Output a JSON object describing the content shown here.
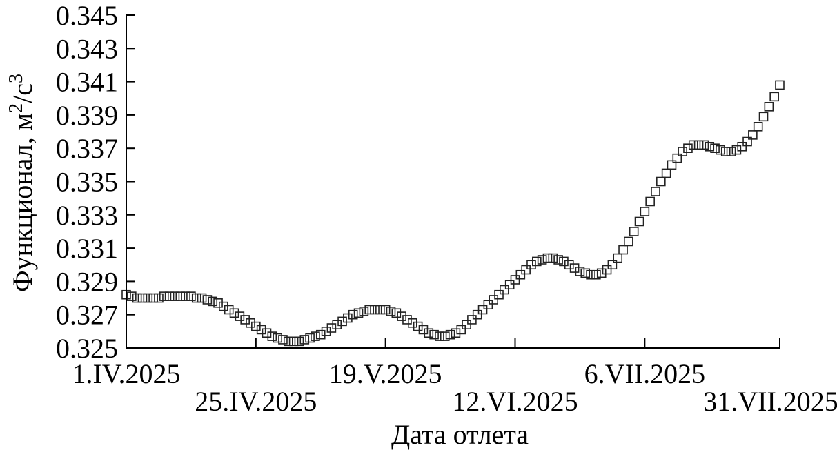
{
  "chart_data": {
    "type": "scatter",
    "marker": "open-square",
    "xlabel": "Дата отлета",
    "ylabel": "Функционал, м²/с³",
    "ylabel_parts": {
      "text": "Функционал, м",
      "sup1": "2",
      "mid": "/с",
      "sup2": "3"
    },
    "x_start": "2025-04-01",
    "x_end": "2025-07-31",
    "ylim": [
      0.325,
      0.345
    ],
    "y_ticks": [
      "0.325",
      "0.327",
      "0.329",
      "0.331",
      "0.333",
      "0.335",
      "0.337",
      "0.339",
      "0.341",
      "0.343",
      "0.345"
    ],
    "x_ticks": [
      {
        "date": "2025-04-01",
        "label": "1.IV.2025",
        "row": 1
      },
      {
        "date": "2025-04-25",
        "label": "25.IV.2025",
        "row": 2
      },
      {
        "date": "2025-05-19",
        "label": "19.V.2025",
        "row": 1
      },
      {
        "date": "2025-06-12",
        "label": "12.VI.2025",
        "row": 2
      },
      {
        "date": "2025-07-06",
        "label": "6.VII.2025",
        "row": 1
      },
      {
        "date": "2025-07-31",
        "label": "31.VII.2025",
        "row": 2
      }
    ],
    "points": [
      {
        "x": "2025-04-01",
        "y": 0.3282
      },
      {
        "x": "2025-04-02",
        "y": 0.3281
      },
      {
        "x": "2025-04-03",
        "y": 0.328
      },
      {
        "x": "2025-04-04",
        "y": 0.328
      },
      {
        "x": "2025-04-05",
        "y": 0.328
      },
      {
        "x": "2025-04-06",
        "y": 0.328
      },
      {
        "x": "2025-04-07",
        "y": 0.328
      },
      {
        "x": "2025-04-08",
        "y": 0.3281
      },
      {
        "x": "2025-04-09",
        "y": 0.3281
      },
      {
        "x": "2025-04-10",
        "y": 0.3281
      },
      {
        "x": "2025-04-11",
        "y": 0.3281
      },
      {
        "x": "2025-04-12",
        "y": 0.3281
      },
      {
        "x": "2025-04-13",
        "y": 0.3281
      },
      {
        "x": "2025-04-14",
        "y": 0.328
      },
      {
        "x": "2025-04-15",
        "y": 0.328
      },
      {
        "x": "2025-04-16",
        "y": 0.3279
      },
      {
        "x": "2025-04-17",
        "y": 0.3278
      },
      {
        "x": "2025-04-18",
        "y": 0.3277
      },
      {
        "x": "2025-04-19",
        "y": 0.3275
      },
      {
        "x": "2025-04-20",
        "y": 0.3273
      },
      {
        "x": "2025-04-21",
        "y": 0.3271
      },
      {
        "x": "2025-04-22",
        "y": 0.3269
      },
      {
        "x": "2025-04-23",
        "y": 0.3267
      },
      {
        "x": "2025-04-24",
        "y": 0.3265
      },
      {
        "x": "2025-04-25",
        "y": 0.3263
      },
      {
        "x": "2025-04-26",
        "y": 0.3261
      },
      {
        "x": "2025-04-27",
        "y": 0.3259
      },
      {
        "x": "2025-04-28",
        "y": 0.3257
      },
      {
        "x": "2025-04-29",
        "y": 0.3256
      },
      {
        "x": "2025-04-30",
        "y": 0.3255
      },
      {
        "x": "2025-05-01",
        "y": 0.3254
      },
      {
        "x": "2025-05-02",
        "y": 0.3254
      },
      {
        "x": "2025-05-03",
        "y": 0.3254
      },
      {
        "x": "2025-05-04",
        "y": 0.3255
      },
      {
        "x": "2025-05-05",
        "y": 0.3256
      },
      {
        "x": "2025-05-06",
        "y": 0.3257
      },
      {
        "x": "2025-05-07",
        "y": 0.3258
      },
      {
        "x": "2025-05-08",
        "y": 0.326
      },
      {
        "x": "2025-05-09",
        "y": 0.3262
      },
      {
        "x": "2025-05-10",
        "y": 0.3264
      },
      {
        "x": "2025-05-11",
        "y": 0.3266
      },
      {
        "x": "2025-05-12",
        "y": 0.3268
      },
      {
        "x": "2025-05-13",
        "y": 0.327
      },
      {
        "x": "2025-05-14",
        "y": 0.3271
      },
      {
        "x": "2025-05-15",
        "y": 0.3272
      },
      {
        "x": "2025-05-16",
        "y": 0.3273
      },
      {
        "x": "2025-05-17",
        "y": 0.3273
      },
      {
        "x": "2025-05-18",
        "y": 0.3273
      },
      {
        "x": "2025-05-19",
        "y": 0.3273
      },
      {
        "x": "2025-05-20",
        "y": 0.3272
      },
      {
        "x": "2025-05-21",
        "y": 0.3271
      },
      {
        "x": "2025-05-22",
        "y": 0.3269
      },
      {
        "x": "2025-05-23",
        "y": 0.3267
      },
      {
        "x": "2025-05-24",
        "y": 0.3265
      },
      {
        "x": "2025-05-25",
        "y": 0.3263
      },
      {
        "x": "2025-05-26",
        "y": 0.3261
      },
      {
        "x": "2025-05-27",
        "y": 0.3259
      },
      {
        "x": "2025-05-28",
        "y": 0.3258
      },
      {
        "x": "2025-05-29",
        "y": 0.3257
      },
      {
        "x": "2025-05-30",
        "y": 0.3257
      },
      {
        "x": "2025-05-31",
        "y": 0.3258
      },
      {
        "x": "2025-06-01",
        "y": 0.3259
      },
      {
        "x": "2025-06-02",
        "y": 0.3261
      },
      {
        "x": "2025-06-03",
        "y": 0.3264
      },
      {
        "x": "2025-06-04",
        "y": 0.3267
      },
      {
        "x": "2025-06-05",
        "y": 0.327
      },
      {
        "x": "2025-06-06",
        "y": 0.3273
      },
      {
        "x": "2025-06-07",
        "y": 0.3276
      },
      {
        "x": "2025-06-08",
        "y": 0.3279
      },
      {
        "x": "2025-06-09",
        "y": 0.3282
      },
      {
        "x": "2025-06-10",
        "y": 0.3285
      },
      {
        "x": "2025-06-11",
        "y": 0.3288
      },
      {
        "x": "2025-06-12",
        "y": 0.3291
      },
      {
        "x": "2025-06-13",
        "y": 0.3294
      },
      {
        "x": "2025-06-14",
        "y": 0.3297
      },
      {
        "x": "2025-06-15",
        "y": 0.33
      },
      {
        "x": "2025-06-16",
        "y": 0.3302
      },
      {
        "x": "2025-06-17",
        "y": 0.3303
      },
      {
        "x": "2025-06-18",
        "y": 0.3304
      },
      {
        "x": "2025-06-19",
        "y": 0.3304
      },
      {
        "x": "2025-06-20",
        "y": 0.3303
      },
      {
        "x": "2025-06-21",
        "y": 0.3302
      },
      {
        "x": "2025-06-22",
        "y": 0.33
      },
      {
        "x": "2025-06-23",
        "y": 0.3298
      },
      {
        "x": "2025-06-24",
        "y": 0.3296
      },
      {
        "x": "2025-06-25",
        "y": 0.3295
      },
      {
        "x": "2025-06-26",
        "y": 0.3294
      },
      {
        "x": "2025-06-27",
        "y": 0.3294
      },
      {
        "x": "2025-06-28",
        "y": 0.3295
      },
      {
        "x": "2025-06-29",
        "y": 0.3297
      },
      {
        "x": "2025-06-30",
        "y": 0.33
      },
      {
        "x": "2025-07-01",
        "y": 0.3304
      },
      {
        "x": "2025-07-02",
        "y": 0.3309
      },
      {
        "x": "2025-07-03",
        "y": 0.3314
      },
      {
        "x": "2025-07-04",
        "y": 0.332
      },
      {
        "x": "2025-07-05",
        "y": 0.3326
      },
      {
        "x": "2025-07-06",
        "y": 0.3332
      },
      {
        "x": "2025-07-07",
        "y": 0.3338
      },
      {
        "x": "2025-07-08",
        "y": 0.3344
      },
      {
        "x": "2025-07-09",
        "y": 0.335
      },
      {
        "x": "2025-07-10",
        "y": 0.3355
      },
      {
        "x": "2025-07-11",
        "y": 0.336
      },
      {
        "x": "2025-07-12",
        "y": 0.3364
      },
      {
        "x": "2025-07-13",
        "y": 0.3368
      },
      {
        "x": "2025-07-14",
        "y": 0.337
      },
      {
        "x": "2025-07-15",
        "y": 0.3372
      },
      {
        "x": "2025-07-16",
        "y": 0.3372
      },
      {
        "x": "2025-07-17",
        "y": 0.3372
      },
      {
        "x": "2025-07-18",
        "y": 0.3371
      },
      {
        "x": "2025-07-19",
        "y": 0.337
      },
      {
        "x": "2025-07-20",
        "y": 0.3369
      },
      {
        "x": "2025-07-21",
        "y": 0.3368
      },
      {
        "x": "2025-07-22",
        "y": 0.3368
      },
      {
        "x": "2025-07-23",
        "y": 0.3369
      },
      {
        "x": "2025-07-24",
        "y": 0.3371
      },
      {
        "x": "2025-07-25",
        "y": 0.3374
      },
      {
        "x": "2025-07-26",
        "y": 0.3378
      },
      {
        "x": "2025-07-27",
        "y": 0.3383
      },
      {
        "x": "2025-07-28",
        "y": 0.3389
      },
      {
        "x": "2025-07-29",
        "y": 0.3395
      },
      {
        "x": "2025-07-30",
        "y": 0.3401
      },
      {
        "x": "2025-07-31",
        "y": 0.3408
      }
    ]
  }
}
